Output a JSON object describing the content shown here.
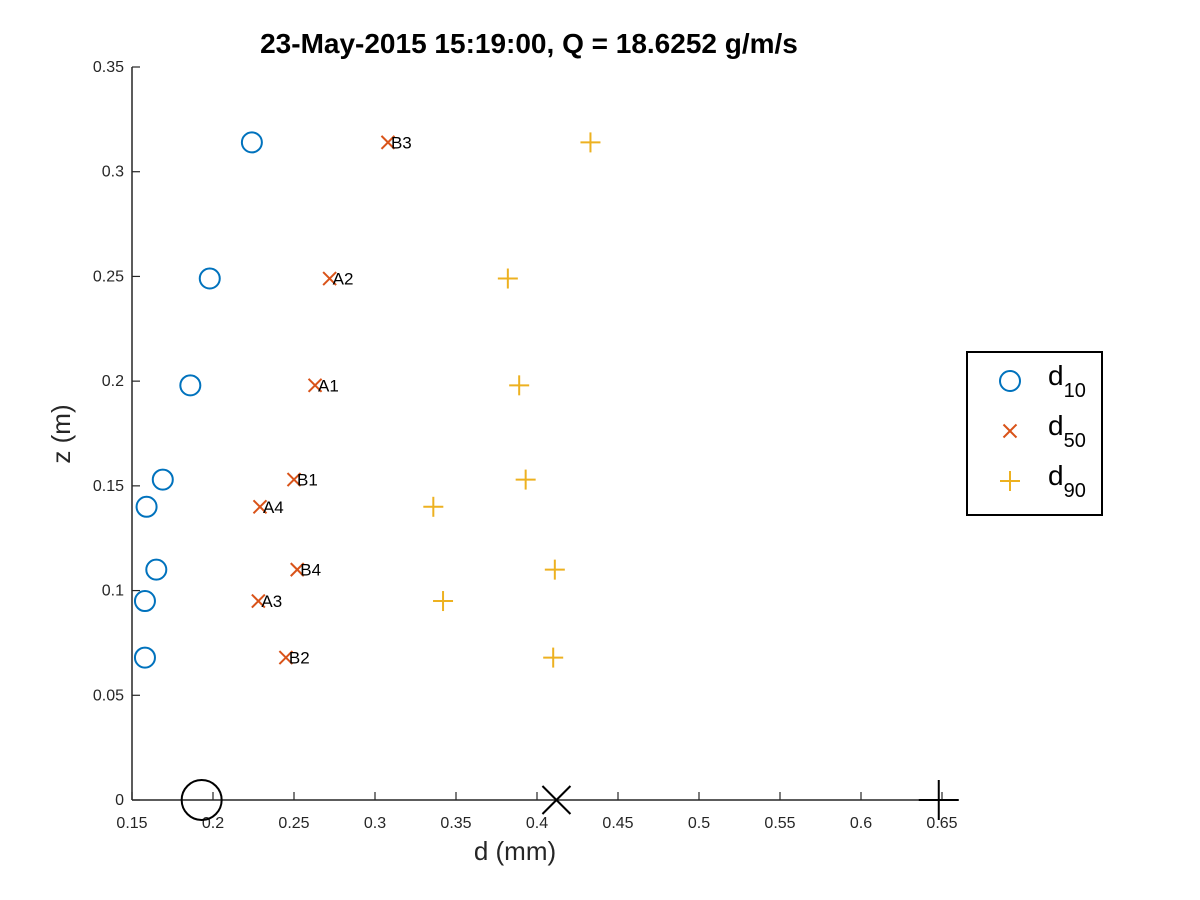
{
  "chart_data": {
    "type": "scatter",
    "title": "23-May-2015 15:19:00, Q = 18.6252 g/m/s",
    "xlabel": "d (mm)",
    "ylabel": "z (m)",
    "xlim": [
      0.15,
      0.65
    ],
    "ylim": [
      0,
      0.35
    ],
    "xticks": [
      "0.15",
      "0.2",
      "0.25",
      "0.3",
      "0.35",
      "0.4",
      "0.45",
      "0.5",
      "0.55",
      "0.6",
      "0.65"
    ],
    "xtick_values": [
      0.15,
      0.2,
      0.25,
      0.3,
      0.35,
      0.4,
      0.45,
      0.5,
      0.55,
      0.6,
      0.65
    ],
    "yticks": [
      "0",
      "0.05",
      "0.1",
      "0.15",
      "0.2",
      "0.25",
      "0.3",
      "0.35"
    ],
    "ytick_values": [
      0,
      0.05,
      0.1,
      0.15,
      0.2,
      0.25,
      0.3,
      0.35
    ],
    "grid": false,
    "legend_position": "outside-right",
    "series": [
      {
        "name": "d10",
        "legend_main": "d",
        "legend_sub": "10",
        "marker": "circle",
        "color": "#0072BD",
        "x": [
          0.224,
          0.198,
          0.186,
          0.169,
          0.159,
          0.165,
          0.158,
          0.158
        ],
        "y": [
          0.314,
          0.249,
          0.198,
          0.153,
          0.14,
          0.11,
          0.095,
          0.068
        ]
      },
      {
        "name": "d50",
        "legend_main": "d",
        "legend_sub": "50",
        "marker": "x",
        "color": "#D95319",
        "x": [
          0.308,
          0.272,
          0.263,
          0.25,
          0.229,
          0.252,
          0.228,
          0.245
        ],
        "y": [
          0.314,
          0.249,
          0.198,
          0.153,
          0.14,
          0.11,
          0.095,
          0.068
        ],
        "labels": [
          "B3",
          "A2",
          "A1",
          "B1",
          "A4",
          "B4",
          "A3",
          "B2"
        ]
      },
      {
        "name": "d90",
        "legend_main": "d",
        "legend_sub": "90",
        "marker": "plus",
        "color": "#EDB120",
        "x": [
          0.433,
          0.382,
          0.389,
          0.393,
          0.336,
          0.411,
          0.342,
          0.41
        ],
        "y": [
          0.314,
          0.249,
          0.198,
          0.153,
          0.14,
          0.11,
          0.095,
          0.068
        ]
      }
    ],
    "summary_markers": [
      {
        "name": "d10-mean",
        "marker": "circle",
        "color": "#000000",
        "x": 0.193,
        "y": 0
      },
      {
        "name": "d50-mean",
        "marker": "x",
        "color": "#000000",
        "x": 0.412,
        "y": 0
      },
      {
        "name": "d90-mean",
        "marker": "plus",
        "color": "#000000",
        "x": 0.648,
        "y": 0
      }
    ]
  }
}
